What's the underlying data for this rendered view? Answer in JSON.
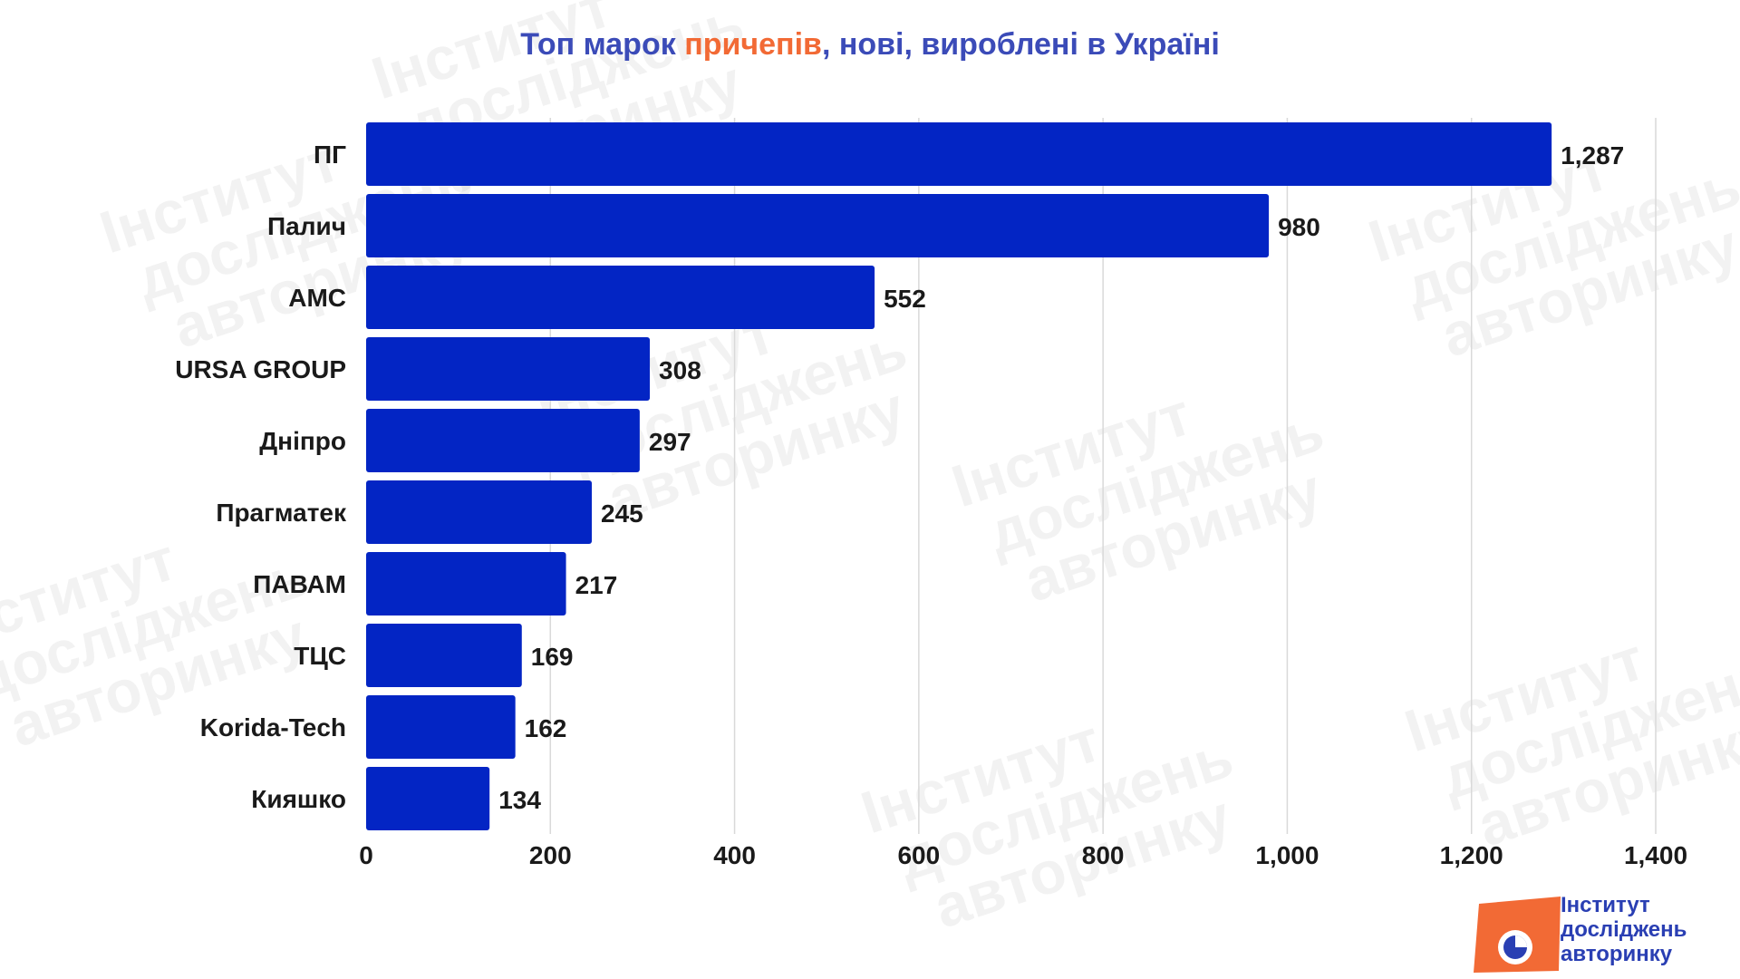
{
  "title": {
    "part1": "Топ марок ",
    "highlight": "причепів",
    "part2": ", нові, вироблені в Україні"
  },
  "colors": {
    "bar": "#0325c4",
    "title": "#3b4bb8",
    "title_highlight": "#f26a35",
    "grid": "#d9d9d9",
    "logo_orange": "#f26a35",
    "logo_blue": "#2a3fb3"
  },
  "watermark": {
    "lines": [
      "Інститут",
      "досліджень",
      "авторинку"
    ]
  },
  "logo": {
    "icon": "pie-chart-icon",
    "lines": [
      "Інститут",
      "досліджень",
      "авторинку"
    ]
  },
  "chart_data": {
    "type": "bar",
    "orientation": "horizontal",
    "categories": [
      "ПГ",
      "Палич",
      "АМС",
      "URSA GROUP",
      "Дніпро",
      "Прагматек",
      "ПАВАМ",
      "ТЦС",
      "Korida-Tech",
      "Кияшко"
    ],
    "values": [
      1287,
      980,
      552,
      308,
      297,
      245,
      217,
      169,
      162,
      134
    ],
    "data_labels": [
      "1,287",
      "980",
      "552",
      "308",
      "297",
      "245",
      "217",
      "169",
      "162",
      "134"
    ],
    "x_ticks": [
      0,
      200,
      400,
      600,
      800,
      1000,
      1200,
      1400
    ],
    "x_tick_labels": [
      "0",
      "200",
      "400",
      "600",
      "800",
      "1,000",
      "1,200",
      "1,400"
    ],
    "xlim": [
      0,
      1400
    ],
    "grid": true,
    "xlabel": "",
    "ylabel": ""
  }
}
